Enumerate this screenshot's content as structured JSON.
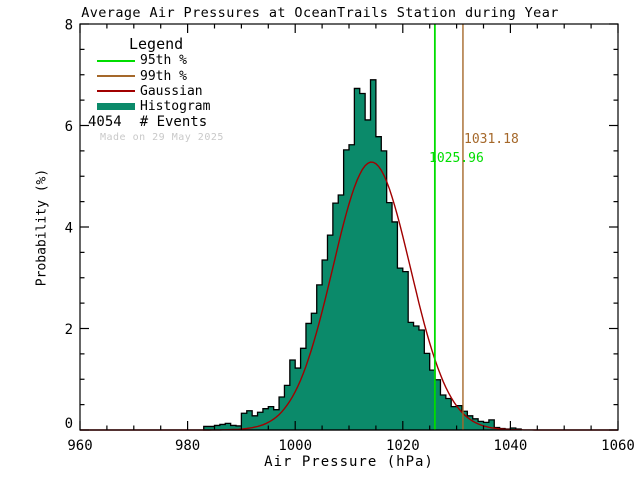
{
  "title": "Average Air Pressures at OceanTrails Station during Year",
  "watermark": "Made on 29 May 2025",
  "legend": {
    "header": "Legend",
    "items": [
      {
        "label": "95th %",
        "color": "#00dd00",
        "style": "line"
      },
      {
        "label": "99th %",
        "color": "#a5682a",
        "style": "line"
      },
      {
        "label": "Gaussian",
        "color": "#a10000",
        "style": "line"
      },
      {
        "label": "Histogram",
        "color": "#0b8a6a",
        "style": "swatch"
      }
    ],
    "events_count": "4054",
    "events_label": "# Events"
  },
  "chart_data": {
    "type": "bar",
    "subtype": "histogram-with-gaussian-fit",
    "title": "Average Air Pressures at OceanTrails Station during Year",
    "xlabel": "Air Pressure (hPa)",
    "ylabel": "Probability (%)",
    "xlim": [
      960,
      1060
    ],
    "ylim": [
      0,
      8
    ],
    "x_major_ticks": [
      960,
      980,
      1000,
      1020,
      1040,
      1060
    ],
    "x_minor_step": 5,
    "y_major_ticks": [
      0,
      2,
      4,
      6,
      8
    ],
    "y_minor_step": 0.5,
    "grid": false,
    "legend_position": "top-left",
    "n_events": 4054,
    "histogram": {
      "bin_width_hpa": 1,
      "first_bin_left_edge_hpa": 983,
      "values_percent": [
        0.07,
        0.07,
        0.09,
        0.11,
        0.13,
        0.09,
        0.08,
        0.33,
        0.38,
        0.28,
        0.35,
        0.42,
        0.46,
        0.4,
        0.65,
        0.88,
        1.38,
        1.22,
        1.61,
        2.1,
        2.3,
        2.86,
        3.35,
        3.84,
        4.47,
        4.63,
        5.52,
        5.62,
        6.73,
        6.63,
        6.11,
        6.9,
        5.78,
        5.5,
        4.48,
        4.1,
        3.19,
        3.12,
        2.12,
        2.05,
        1.97,
        1.51,
        1.18,
        0.99,
        0.69,
        0.62,
        0.46,
        0.48,
        0.37,
        0.28,
        0.22,
        0.17,
        0.15,
        0.2,
        0.05,
        0.03,
        0.02,
        0.04,
        0.02
      ]
    },
    "gaussian_fit": {
      "amplitude_percent": 5.28,
      "mean_hpa": 1014.2,
      "sigma_hpa": 7.2
    },
    "percentile_lines": [
      {
        "name": "95th percentile",
        "value_hpa": 1025.96,
        "label": "1025.96",
        "color": "#00dd00"
      },
      {
        "name": "99th percentile",
        "value_hpa": 1031.18,
        "label": "1031.18",
        "color": "#a5682a"
      }
    ],
    "colors": {
      "histogram_fill": "#0b8a6a",
      "histogram_outline": "#000000",
      "gaussian": "#a10000",
      "percentile_95": "#00dd00",
      "percentile_99": "#a5682a",
      "axes": "#000000",
      "watermark": "#c9c9c9"
    }
  }
}
